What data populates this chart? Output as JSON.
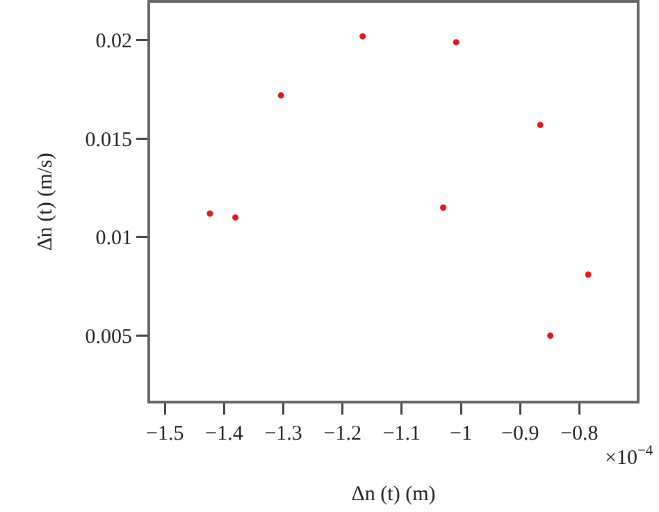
{
  "chart_data": {
    "type": "scatter",
    "xlabel": "Δn (t) (m)",
    "ylabel": "Δ̇n (t) (m/s)",
    "x": [
      -1.424,
      -1.381,
      -1.304,
      -1.166,
      -1.008,
      -0.866,
      -1.03,
      -0.785,
      -0.849
    ],
    "series": [
      {
        "color": "#e8141c",
        "values": [
          0.0112,
          0.011,
          0.0172,
          0.0202,
          0.0199,
          0.0157,
          0.0115,
          0.0081,
          0.005
        ]
      }
    ],
    "xlim": [
      -1.525,
      -0.703
    ],
    "ylim": [
      0.0017,
      0.0219
    ],
    "xticks": [
      {
        "value": -1.5,
        "label": "−1.5"
      },
      {
        "value": -1.4,
        "label": "−1.4"
      },
      {
        "value": -1.3,
        "label": "−1.3"
      },
      {
        "value": -1.2,
        "label": "−1.2"
      },
      {
        "value": -1.1,
        "label": "−1.1"
      },
      {
        "value": -1,
        "label": "−1"
      },
      {
        "value": -0.9,
        "label": "−0.9"
      },
      {
        "value": -0.8,
        "label": "−0.8"
      }
    ],
    "yticks": [
      0.005,
      0.01,
      0.015,
      0.02
    ],
    "annotations": [
      "×10$^{−4}$"
    ],
    "grid": false,
    "marker": "circle"
  }
}
